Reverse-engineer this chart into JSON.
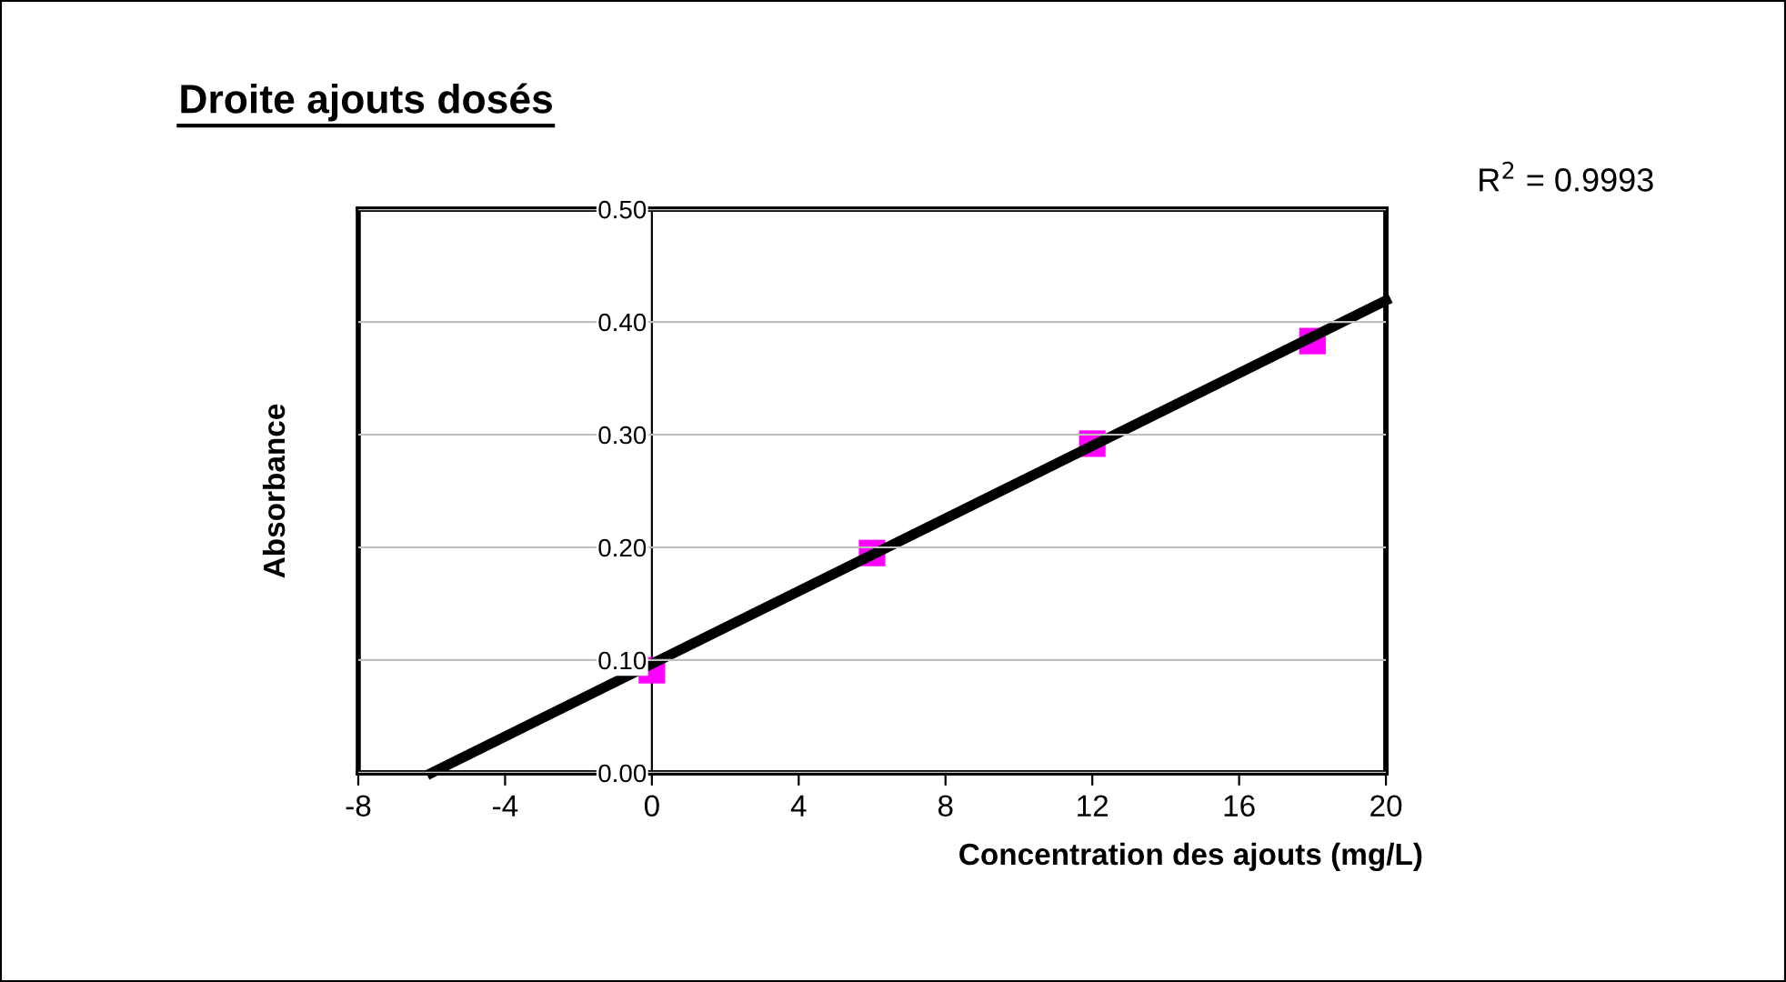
{
  "chart_data": {
    "type": "scatter",
    "title": "Droite ajouts dosés",
    "xlabel": "Concentration des ajouts (mg/L)",
    "ylabel": "Absorbance",
    "x": [
      0,
      6,
      12,
      18
    ],
    "series": [
      {
        "color": "#ff00ff",
        "marker": "square",
        "values": [
          0.091,
          0.195,
          0.292,
          0.383
        ]
      },
      {
        "type": "line",
        "color": "#000000",
        "x": [
          -6,
          20
        ],
        "values": [
          0,
          0.419
        ],
        "marker": "none",
        "line_style": "solid"
      }
    ],
    "annotations": [
      "R$^{2}$ = 0.9993"
    ],
    "xlim": [
      -8,
      20
    ],
    "xticks": [
      -8,
      -4,
      0,
      4,
      8,
      12,
      16,
      20
    ],
    "ylim": [
      0,
      0.5
    ],
    "yticks": [
      {
        "value": 0,
        "label": "0.00"
      },
      {
        "value": 0.1,
        "label": "0.10"
      },
      {
        "value": 0.2,
        "label": "0.20"
      },
      {
        "value": 0.3,
        "label": "0.30"
      },
      {
        "value": 0.4,
        "label": "0.40"
      },
      {
        "value": 0.5,
        "label": "0.50"
      }
    ],
    "grid": "y",
    "legend": false
  }
}
